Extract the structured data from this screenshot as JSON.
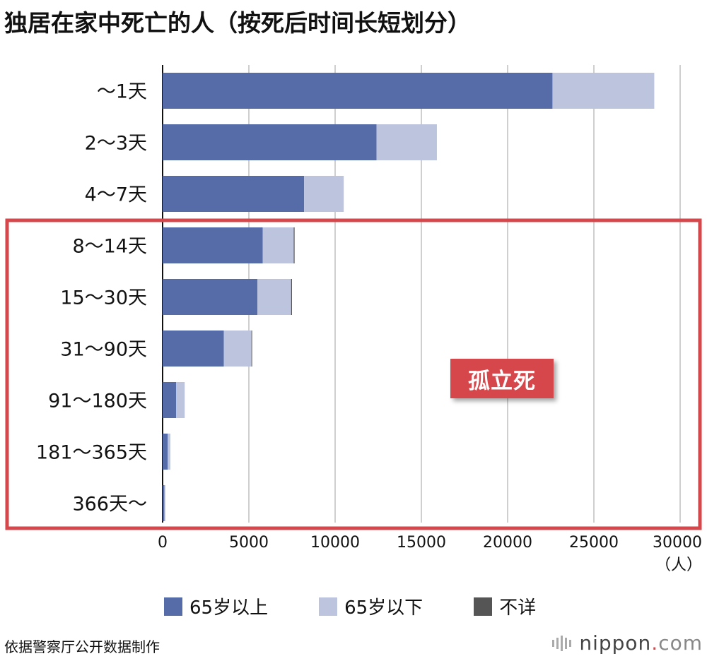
{
  "title": "独居在家中死亡的人（按死后时间长短划分）",
  "chart_data": {
    "type": "bar",
    "orientation": "horizontal",
    "stacked": true,
    "categories": [
      "～1天",
      "2～3天",
      "4～7天",
      "8～14天",
      "15～30天",
      "31～90天",
      "91～180天",
      "181～365天",
      "366天～"
    ],
    "series": [
      {
        "name": "65岁以上",
        "color": "#566ca8",
        "values": [
          22600,
          12400,
          8200,
          5800,
          5500,
          3550,
          780,
          300,
          100
        ]
      },
      {
        "name": "65岁以下",
        "color": "#bdc4de",
        "values": [
          5900,
          3500,
          2300,
          1800,
          1950,
          1600,
          500,
          150,
          60
        ]
      },
      {
        "name": "不详",
        "color": "#555555",
        "values": [
          0,
          0,
          0,
          50,
          50,
          40,
          0,
          0,
          0
        ]
      }
    ],
    "xlim": [
      0,
      30000
    ],
    "xticks": [
      0,
      5000,
      10000,
      15000,
      20000,
      25000,
      30000
    ],
    "x_unit": "（人）",
    "grid": true,
    "legend_position": "bottom",
    "highlight": {
      "label": "孤立死",
      "categories_from": "8～14天",
      "categories_to": "366天～",
      "color": "#d6474b"
    }
  },
  "source": "依据警察厅公开数据制作",
  "brand": {
    "name": "nippon",
    "dot": ".",
    "tld": "com"
  }
}
